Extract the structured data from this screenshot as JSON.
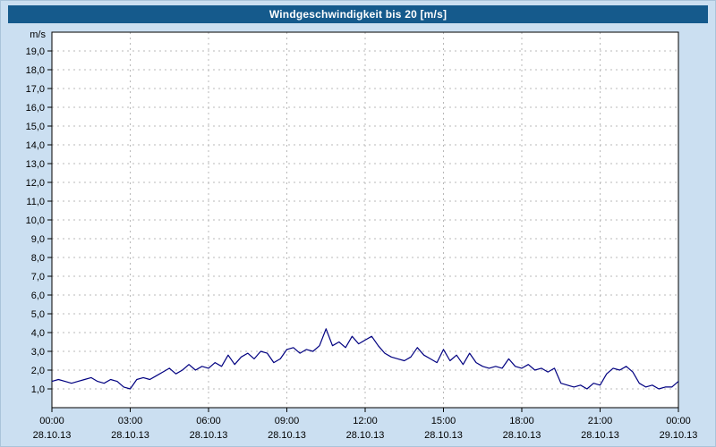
{
  "title": "Windgeschwindigkeit bis 20 [m/s]",
  "colors": {
    "titlebar_bg": "#155a8c",
    "titlebar_text": "#ffffff",
    "window_bg": "#cbdff1",
    "plot_bg": "#ffffff",
    "plot_border": "#000000",
    "grid": "#b8b8b8",
    "line": "#000080"
  },
  "chart_data": {
    "type": "line",
    "title": "Windgeschwindigkeit bis 20 [m/s]",
    "xlabel": "",
    "ylabel": "m/s",
    "ylim": [
      0,
      20
    ],
    "grid": "dashed",
    "legend": "none",
    "y_ticks": [
      {
        "value": 19,
        "label": "19,0"
      },
      {
        "value": 18,
        "label": "18,0"
      },
      {
        "value": 17,
        "label": "17,0"
      },
      {
        "value": 16,
        "label": "16,0"
      },
      {
        "value": 15,
        "label": "15,0"
      },
      {
        "value": 14,
        "label": "14,0"
      },
      {
        "value": 13,
        "label": "13,0"
      },
      {
        "value": 12,
        "label": "12,0"
      },
      {
        "value": 11,
        "label": "11,0"
      },
      {
        "value": 10,
        "label": "10,0"
      },
      {
        "value": 9,
        "label": "9,0"
      },
      {
        "value": 8,
        "label": "8,0"
      },
      {
        "value": 7,
        "label": "7,0"
      },
      {
        "value": 6,
        "label": "6,0"
      },
      {
        "value": 5,
        "label": "5,0"
      },
      {
        "value": 4,
        "label": "4,0"
      },
      {
        "value": 3,
        "label": "3,0"
      },
      {
        "value": 2,
        "label": "2,0"
      },
      {
        "value": 1,
        "label": "1,0"
      }
    ],
    "x_ticks": [
      {
        "minutes": 0,
        "time": "00:00",
        "date": "28.10.13"
      },
      {
        "minutes": 180,
        "time": "03:00",
        "date": "28.10.13"
      },
      {
        "minutes": 360,
        "time": "06:00",
        "date": "28.10.13"
      },
      {
        "minutes": 540,
        "time": "09:00",
        "date": "28.10.13"
      },
      {
        "minutes": 720,
        "time": "12:00",
        "date": "28.10.13"
      },
      {
        "minutes": 900,
        "time": "15:00",
        "date": "28.10.13"
      },
      {
        "minutes": 1080,
        "time": "18:00",
        "date": "28.10.13"
      },
      {
        "minutes": 1260,
        "time": "21:00",
        "date": "28.10.13"
      },
      {
        "minutes": 1440,
        "time": "00:00",
        "date": "29.10.13"
      }
    ],
    "x_total_minutes": 1440,
    "series": [
      {
        "color": "#000080",
        "x_step_minutes": 15,
        "values": [
          1.4,
          1.5,
          1.4,
          1.3,
          1.4,
          1.5,
          1.6,
          1.4,
          1.3,
          1.5,
          1.4,
          1.1,
          1.0,
          1.5,
          1.6,
          1.5,
          1.7,
          1.9,
          2.1,
          1.8,
          2.0,
          2.3,
          2.0,
          2.2,
          2.1,
          2.4,
          2.2,
          2.8,
          2.3,
          2.7,
          2.9,
          2.6,
          3.0,
          2.9,
          2.4,
          2.6,
          3.1,
          3.2,
          2.9,
          3.1,
          3.0,
          3.3,
          4.2,
          3.3,
          3.5,
          3.2,
          3.8,
          3.4,
          3.6,
          3.8,
          3.3,
          2.9,
          2.7,
          2.6,
          2.5,
          2.7,
          3.2,
          2.8,
          2.6,
          2.4,
          3.1,
          2.5,
          2.8,
          2.3,
          2.9,
          2.4,
          2.2,
          2.1,
          2.2,
          2.1,
          2.6,
          2.2,
          2.1,
          2.3,
          2.0,
          2.1,
          1.9,
          2.1,
          1.3,
          1.2,
          1.1,
          1.2,
          1.0,
          1.3,
          1.2,
          1.8,
          2.1,
          2.0,
          2.2,
          1.9,
          1.3,
          1.1,
          1.2,
          1.0,
          1.1,
          1.1,
          1.4
        ]
      }
    ]
  }
}
